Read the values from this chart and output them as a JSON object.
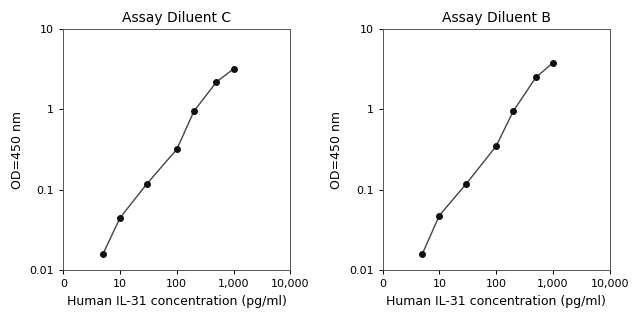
{
  "left": {
    "title": "Assay Diluent C",
    "x": [
      5,
      10,
      30,
      100,
      200,
      500,
      1000
    ],
    "y": [
      0.016,
      0.045,
      0.12,
      0.32,
      0.95,
      2.2,
      3.2
    ]
  },
  "right": {
    "title": "Assay Diluent B",
    "x": [
      5,
      10,
      30,
      100,
      200,
      500,
      1000
    ],
    "y": [
      0.016,
      0.048,
      0.12,
      0.35,
      0.95,
      2.5,
      3.8
    ]
  },
  "xlabel": "Human IL-31 concentration (pg/ml)",
  "ylabel": "OD=450 nm",
  "xlim": [
    3,
    10000
  ],
  "ylim": [
    0.01,
    10
  ],
  "xticks": [
    1,
    10,
    100,
    1000,
    10000
  ],
  "xtick_labels": [
    "0",
    "10",
    "100",
    "1,000",
    "10,000"
  ],
  "yticks": [
    0.01,
    0.1,
    1,
    10
  ],
  "ytick_labels": [
    "0.01",
    "0.1",
    "1",
    "10"
  ],
  "line_color": "#444444",
  "marker_color": "#111111",
  "marker_size": 4,
  "line_width": 1.0,
  "title_fontsize": 10,
  "label_fontsize": 9,
  "tick_fontsize": 8,
  "background_color": "#ffffff"
}
